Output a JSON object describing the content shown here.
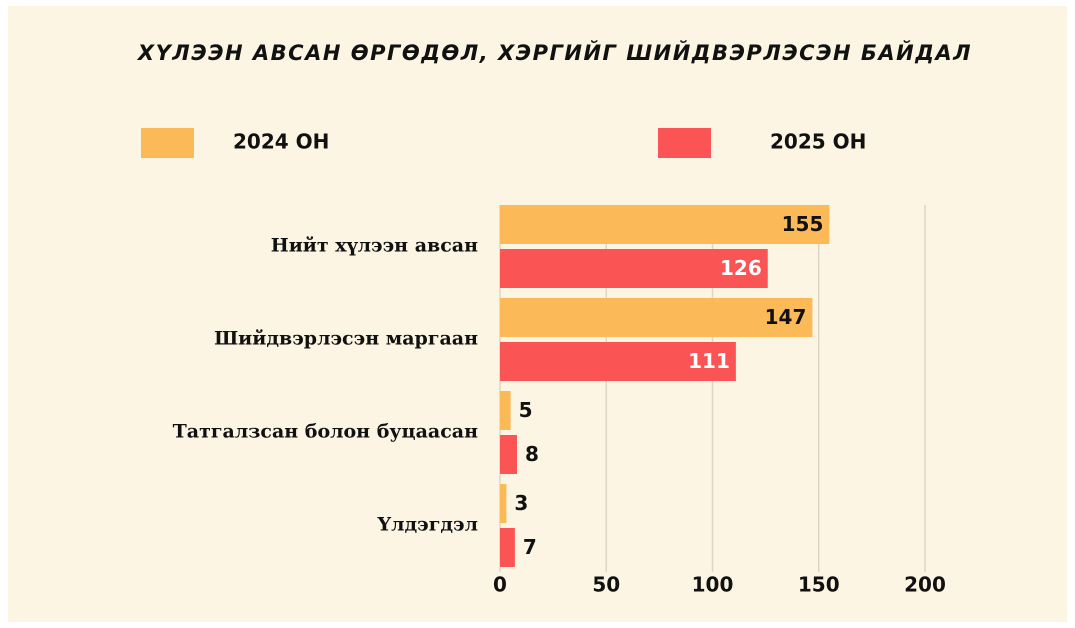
{
  "chart_data": {
    "type": "bar",
    "orientation": "horizontal",
    "title": "ХҮЛЭЭН АВСАН ӨРГӨДӨЛ, ХЭРГИЙГ ШИЙДВЭРЛЭСЭН БАЙДАЛ",
    "categories": [
      "Нийт хүлээн авсан",
      "Шийдвэрлэсэн маргаан",
      "Татгалзсан болон буцаасан",
      "Үлдэгдэл"
    ],
    "series": [
      {
        "name": "2024 ОН",
        "color": "#fbb958",
        "values": [
          155,
          147,
          5,
          3
        ]
      },
      {
        "name": "2025 ОН",
        "color": "#fb5454",
        "values": [
          126,
          111,
          8,
          7
        ]
      }
    ],
    "xlim": [
      0,
      200
    ],
    "xticks": [
      0,
      50,
      100,
      150,
      200
    ],
    "grid": true
  }
}
